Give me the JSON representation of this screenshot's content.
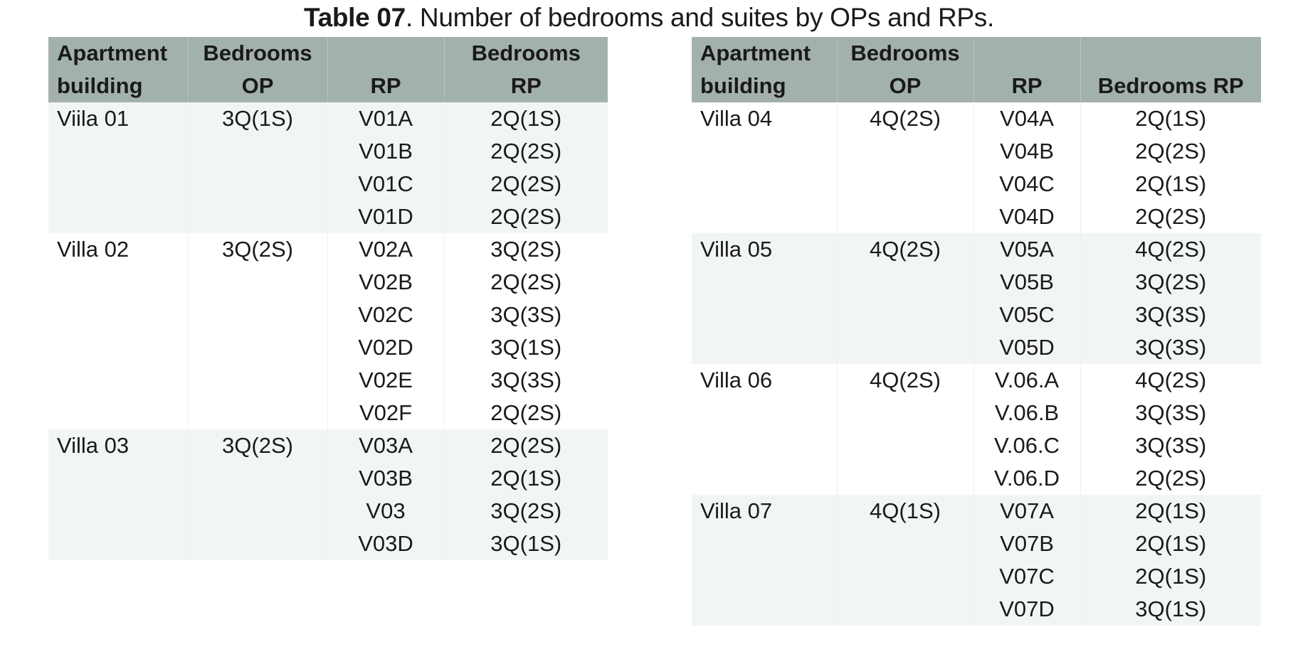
{
  "title": {
    "lead": "Table 07",
    "rest": ". Number of bedrooms and suites by OPs and RPs."
  },
  "colors": {
    "header_bg": "#a3b1ae",
    "band_shaded": "#f2f5f5",
    "band_plain": "#ffffff"
  },
  "tables": [
    {
      "headers": [
        [
          "Apartment",
          "Bedrooms",
          "",
          "Bedrooms"
        ],
        [
          "building",
          "OP",
          "RP",
          "RP"
        ]
      ],
      "groups": [
        {
          "building": "Viila 01",
          "op": "3Q(1S)",
          "shaded": true,
          "rows": [
            {
              "rp": "V01A",
              "bedrooms": "2Q(1S)"
            },
            {
              "rp": "V01B",
              "bedrooms": "2Q(2S)"
            },
            {
              "rp": "V01C",
              "bedrooms": "2Q(2S)"
            },
            {
              "rp": "V01D",
              "bedrooms": "2Q(2S)"
            }
          ]
        },
        {
          "building": "Villa 02",
          "op": "3Q(2S)",
          "shaded": false,
          "rows": [
            {
              "rp": "V02A",
              "bedrooms": "3Q(2S)"
            },
            {
              "rp": "V02B",
              "bedrooms": "2Q(2S)"
            },
            {
              "rp": "V02C",
              "bedrooms": "3Q(3S)"
            },
            {
              "rp": "V02D",
              "bedrooms": "3Q(1S)"
            },
            {
              "rp": "V02E",
              "bedrooms": "3Q(3S)"
            },
            {
              "rp": "V02F",
              "bedrooms": "2Q(2S)"
            }
          ]
        },
        {
          "building": "Villa 03",
          "op": "3Q(2S)",
          "shaded": true,
          "rows": [
            {
              "rp": "V03A",
              "bedrooms": "2Q(2S)"
            },
            {
              "rp": "V03B",
              "bedrooms": "2Q(1S)"
            },
            {
              "rp": "V03",
              "bedrooms": "3Q(2S)"
            },
            {
              "rp": "V03D",
              "bedrooms": "3Q(1S)"
            }
          ]
        }
      ]
    },
    {
      "headers": [
        [
          "Apartment",
          "Bedrooms",
          "",
          ""
        ],
        [
          "building",
          "OP",
          "RP",
          "Bedrooms RP"
        ]
      ],
      "groups": [
        {
          "building": "Villa 04",
          "op": "4Q(2S)",
          "shaded": false,
          "rows": [
            {
              "rp": "V04A",
              "bedrooms": "2Q(1S)"
            },
            {
              "rp": "V04B",
              "bedrooms": "2Q(2S)"
            },
            {
              "rp": "V04C",
              "bedrooms": "2Q(1S)"
            },
            {
              "rp": "V04D",
              "bedrooms": "2Q(2S)"
            }
          ]
        },
        {
          "building": "Villa 05",
          "op": "4Q(2S)",
          "shaded": true,
          "rows": [
            {
              "rp": "V05A",
              "bedrooms": "4Q(2S)"
            },
            {
              "rp": "V05B",
              "bedrooms": "3Q(2S)"
            },
            {
              "rp": "V05C",
              "bedrooms": "3Q(3S)"
            },
            {
              "rp": "V05D",
              "bedrooms": "3Q(3S)"
            }
          ]
        },
        {
          "building": "Villa 06",
          "op": "4Q(2S)",
          "shaded": false,
          "rows": [
            {
              "rp": "V.06.A",
              "bedrooms": "4Q(2S)"
            },
            {
              "rp": "V.06.B",
              "bedrooms": "3Q(3S)"
            },
            {
              "rp": "V.06.C",
              "bedrooms": "3Q(3S)"
            },
            {
              "rp": "V.06.D",
              "bedrooms": "2Q(2S)"
            }
          ]
        },
        {
          "building": "Villa 07",
          "op": "4Q(1S)",
          "shaded": true,
          "rows": [
            {
              "rp": "V07A",
              "bedrooms": "2Q(1S)"
            },
            {
              "rp": "V07B",
              "bedrooms": "2Q(1S)"
            },
            {
              "rp": "V07C",
              "bedrooms": "2Q(1S)"
            },
            {
              "rp": "V07D",
              "bedrooms": "3Q(1S)"
            }
          ]
        }
      ]
    }
  ]
}
